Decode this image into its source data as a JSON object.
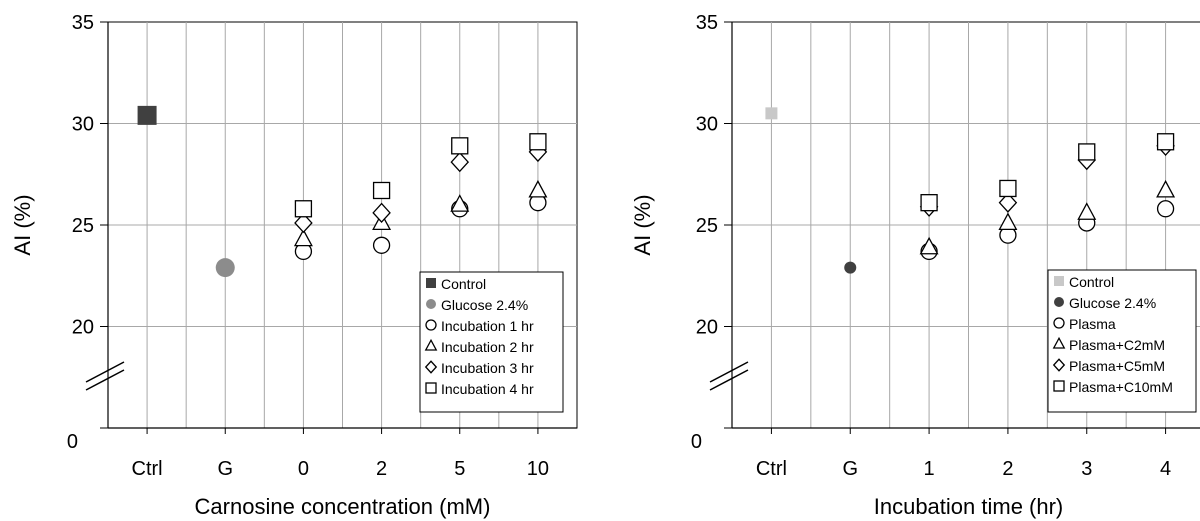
{
  "chart_data": [
    {
      "type": "scatter",
      "title": "",
      "xlabel": "Carnosine concentration (mM)",
      "ylabel": "AI (%)",
      "categories": [
        "Ctrl",
        "G",
        "0",
        "2",
        "5",
        "10"
      ],
      "ylim": [
        15,
        35
      ],
      "yticks": [
        "35",
        "30",
        "25",
        "20",
        "0"
      ],
      "axis_break": true,
      "grid": true,
      "legend_position": "bottom-right",
      "series": [
        {
          "name": "Control",
          "marker": "square",
          "fill": "#404040",
          "size": "large",
          "points": [
            {
              "x": "Ctrl",
              "y": 30.4
            }
          ]
        },
        {
          "name": "Glucose 2.4%",
          "marker": "circle",
          "fill": "#8c8c8c",
          "size": "large",
          "points": [
            {
              "x": "G",
              "y": 22.9
            }
          ]
        },
        {
          "name": "Incubation 1 hr",
          "marker": "circle",
          "fill": "none",
          "points": [
            {
              "x": "0",
              "y": 23.7
            },
            {
              "x": "2",
              "y": 24.0
            },
            {
              "x": "5",
              "y": 25.8
            },
            {
              "x": "10",
              "y": 26.1
            }
          ]
        },
        {
          "name": "Incubation 2 hr",
          "marker": "triangle",
          "fill": "none",
          "points": [
            {
              "x": "0",
              "y": 24.3
            },
            {
              "x": "2",
              "y": 25.1
            },
            {
              "x": "5",
              "y": 26.0
            },
            {
              "x": "10",
              "y": 26.7
            }
          ]
        },
        {
          "name": "Incubation 3 hr",
          "marker": "diamond",
          "fill": "none",
          "points": [
            {
              "x": "0",
              "y": 25.1
            },
            {
              "x": "2",
              "y": 25.6
            },
            {
              "x": "5",
              "y": 28.1
            },
            {
              "x": "10",
              "y": 28.6
            }
          ]
        },
        {
          "name": "Incubation 4 hr",
          "marker": "square",
          "fill": "none",
          "points": [
            {
              "x": "0",
              "y": 25.8
            },
            {
              "x": "2",
              "y": 26.7
            },
            {
              "x": "5",
              "y": 28.9
            },
            {
              "x": "10",
              "y": 29.1
            }
          ]
        }
      ]
    },
    {
      "type": "scatter",
      "title": "",
      "xlabel": "Incubation time (hr)",
      "ylabel": "AI (%)",
      "categories": [
        "Ctrl",
        "G",
        "1",
        "2",
        "3",
        "4"
      ],
      "ylim": [
        15,
        35
      ],
      "yticks": [
        "35",
        "30",
        "25",
        "20",
        "0"
      ],
      "axis_break": true,
      "grid": true,
      "legend_position": "bottom-right",
      "series": [
        {
          "name": "Control",
          "marker": "square",
          "fill": "#c8c8c8",
          "size": "small",
          "points": [
            {
              "x": "Ctrl",
              "y": 30.5
            }
          ]
        },
        {
          "name": "Glucose 2.4%",
          "marker": "circle",
          "fill": "#404040",
          "size": "small",
          "points": [
            {
              "x": "G",
              "y": 22.9
            }
          ]
        },
        {
          "name": "Plasma",
          "marker": "circle",
          "fill": "none",
          "points": [
            {
              "x": "1",
              "y": 23.7
            },
            {
              "x": "2",
              "y": 24.5
            },
            {
              "x": "3",
              "y": 25.1
            },
            {
              "x": "4",
              "y": 25.8
            }
          ]
        },
        {
          "name": "Plasma+C2mM",
          "marker": "triangle",
          "fill": "none",
          "points": [
            {
              "x": "1",
              "y": 23.9
            },
            {
              "x": "2",
              "y": 25.1
            },
            {
              "x": "3",
              "y": 25.6
            },
            {
              "x": "4",
              "y": 26.7
            }
          ]
        },
        {
          "name": "Plasma+C5mM",
          "marker": "diamond",
          "fill": "none",
          "points": [
            {
              "x": "1",
              "y": 25.9
            },
            {
              "x": "2",
              "y": 26.1
            },
            {
              "x": "3",
              "y": 28.2
            },
            {
              "x": "4",
              "y": 28.9
            }
          ]
        },
        {
          "name": "Plasma+C10mM",
          "marker": "square",
          "fill": "none",
          "points": [
            {
              "x": "1",
              "y": 26.1
            },
            {
              "x": "2",
              "y": 26.8
            },
            {
              "x": "3",
              "y": 28.6
            },
            {
              "x": "4",
              "y": 29.1
            }
          ]
        }
      ]
    }
  ]
}
